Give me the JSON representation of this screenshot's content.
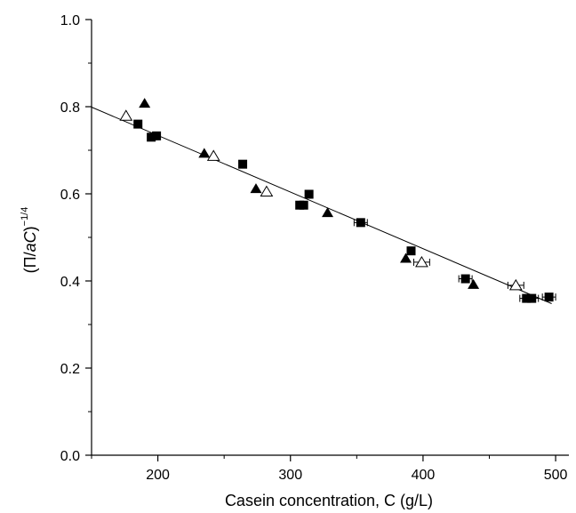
{
  "chart_data": {
    "type": "scatter",
    "title": "",
    "xlabel": "Casein concentration, C (g/L)",
    "ylabel": {
      "prefix": "(Π/",
      "italic": "aC",
      "suffix": ")",
      "superscript": "−1/4"
    },
    "xlim": [
      150,
      510
    ],
    "ylim": [
      0,
      1.0
    ],
    "x_ticks": [
      200,
      300,
      400,
      500
    ],
    "y_ticks": [
      0.0,
      0.2,
      0.4,
      0.6,
      0.8,
      1.0
    ],
    "x_tick_labels": [
      "200",
      "300",
      "400",
      "500"
    ],
    "y_tick_labels": [
      "0.0",
      "0.2",
      "0.4",
      "0.6",
      "0.8",
      "1.0"
    ],
    "grid": false,
    "legend": "none",
    "fit_line": {
      "x": [
        150,
        497
      ],
      "y": [
        0.799,
        0.348
      ]
    },
    "series": [
      {
        "marker": "filled-square",
        "color": "#000000",
        "points": [
          {
            "x": 185,
            "y": 0.76
          },
          {
            "x": 195,
            "y": 0.73
          },
          {
            "x": 199,
            "y": 0.733
          },
          {
            "x": 264,
            "y": 0.668
          },
          {
            "x": 307,
            "y": 0.574
          },
          {
            "x": 310,
            "y": 0.574
          },
          {
            "x": 314,
            "y": 0.599
          },
          {
            "x": 353,
            "y": 0.534,
            "xerr": 5
          },
          {
            "x": 391,
            "y": 0.469
          },
          {
            "x": 432,
            "y": 0.405,
            "xerr": 5
          },
          {
            "x": 478,
            "y": 0.36,
            "xerr": 5
          },
          {
            "x": 482,
            "y": 0.36,
            "xerr": 5
          },
          {
            "x": 495,
            "y": 0.363,
            "xerr": 5
          }
        ]
      },
      {
        "marker": "filled-triangle",
        "color": "#000000",
        "points": [
          {
            "x": 190,
            "y": 0.808
          },
          {
            "x": 235,
            "y": 0.693
          },
          {
            "x": 274,
            "y": 0.612
          },
          {
            "x": 328,
            "y": 0.557
          },
          {
            "x": 387,
            "y": 0.452
          },
          {
            "x": 438,
            "y": 0.392
          }
        ]
      },
      {
        "marker": "open-triangle",
        "color": "#000000",
        "points": [
          {
            "x": 176,
            "y": 0.779
          },
          {
            "x": 242,
            "y": 0.687
          },
          {
            "x": 282,
            "y": 0.605
          },
          {
            "x": 399,
            "y": 0.443,
            "xerr": 6
          },
          {
            "x": 470,
            "y": 0.39,
            "xerr": 6
          }
        ]
      }
    ]
  }
}
